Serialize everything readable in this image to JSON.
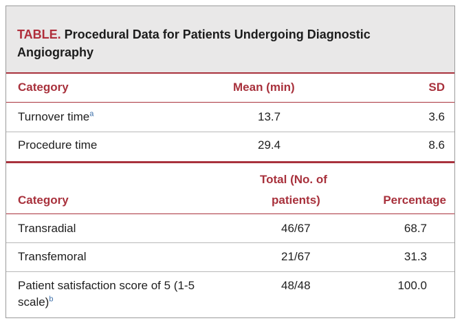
{
  "table": {
    "title_lead": "TABLE.",
    "title_text": " Procedural Data for Patients Undergoing Diagnostic Angiography",
    "section1": {
      "headers": {
        "category": "Category",
        "mean": "Mean (min)",
        "sd": "SD"
      },
      "rows": [
        {
          "category": "Turnover time",
          "sup": "a",
          "mean": "13.7",
          "sd": "3.6"
        },
        {
          "category": "Procedure time",
          "sup": "",
          "mean": "29.4",
          "sd": "8.6"
        }
      ]
    },
    "section2": {
      "headers": {
        "category": "Category",
        "total_line1": "Total (No. of",
        "total_line2": "patients)",
        "percentage": "Percentage"
      },
      "rows": [
        {
          "category": "Transradial",
          "total": "46/67",
          "percentage": "68.7"
        },
        {
          "category": "Transfemoral",
          "total": "21/67",
          "percentage": "31.3"
        },
        {
          "category_line1": "Patient satisfaction score of 5 (1-5",
          "category_line2": "scale)",
          "sup": "b",
          "total": "48/48",
          "percentage": "100.0"
        }
      ]
    }
  },
  "colors": {
    "accent": "#a8313c",
    "title_bg": "#e9e8e8",
    "superscript": "#3b6ea8"
  }
}
